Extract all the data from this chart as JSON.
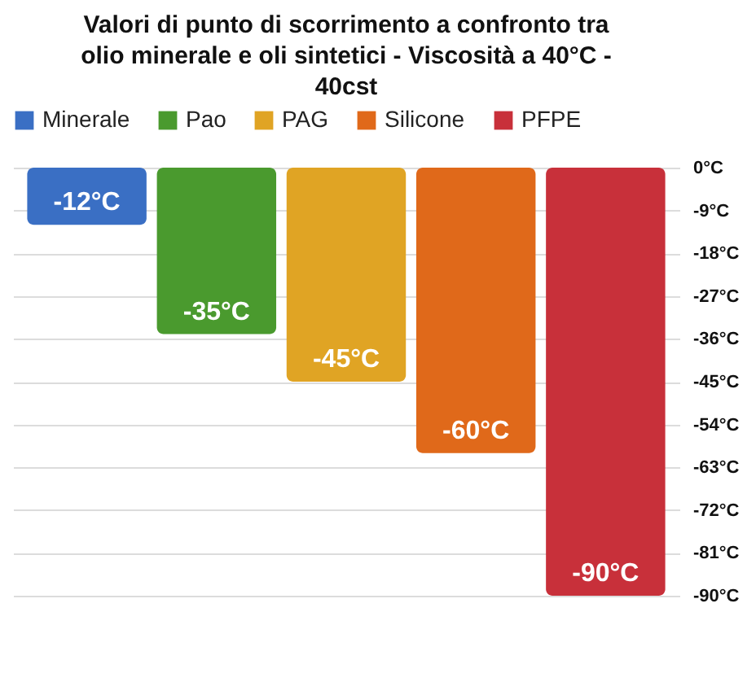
{
  "chart_data": {
    "type": "bar",
    "title": "Valori di punto di scorrimento a confronto tra olio minerale e oli sintetici - Viscosità a 40°C - 40cst",
    "categories": [
      null
    ],
    "series": [
      {
        "name": "Minerale",
        "color": "#3a6fc4",
        "values": [
          -12
        ],
        "value_labels": [
          "-12°C"
        ]
      },
      {
        "name": "Pao",
        "color": "#4a9a2e",
        "values": [
          -35
        ],
        "value_labels": [
          "-35°C"
        ]
      },
      {
        "name": "PAG",
        "color": "#e0a424",
        "values": [
          -45
        ],
        "value_labels": [
          "-45°C"
        ]
      },
      {
        "name": "Silicone",
        "color": "#e0691a",
        "values": [
          -60
        ],
        "value_labels": [
          "-60°C"
        ]
      },
      {
        "name": "PFPE",
        "color": "#c8303a",
        "values": [
          -90
        ],
        "value_labels": [
          "-90°C"
        ]
      }
    ],
    "ylim": [
      -90,
      0
    ],
    "yticks": [
      {
        "value": 0,
        "label": "0°C"
      },
      {
        "value": -9,
        "label": "-9°C"
      },
      {
        "value": -18,
        "label": "-18°C"
      },
      {
        "value": -27,
        "label": "-27°C"
      },
      {
        "value": -36,
        "label": "-36°C"
      },
      {
        "value": -45,
        "label": "-45°C"
      },
      {
        "value": -54,
        "label": "-54°C"
      },
      {
        "value": -63,
        "label": "-63°C"
      },
      {
        "value": -72,
        "label": "-72°C"
      },
      {
        "value": -81,
        "label": "-81°C"
      },
      {
        "value": -90,
        "label": "-90°C"
      }
    ],
    "grid": "y",
    "legend": "top"
  }
}
